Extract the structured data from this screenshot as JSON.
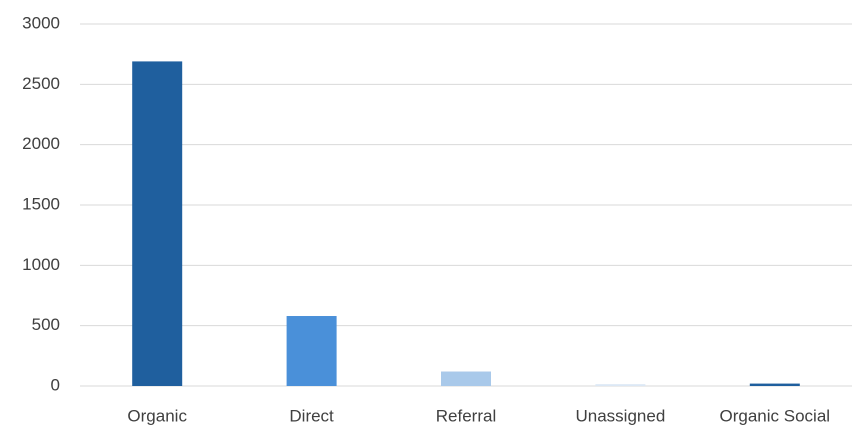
{
  "chart_data": {
    "type": "bar",
    "categories": [
      "Organic",
      "Direct",
      "Referral",
      "Unassigned",
      "Organic Social"
    ],
    "values": [
      2690,
      580,
      120,
      15,
      20
    ],
    "colors": [
      "#1f5f9e",
      "#4a90d9",
      "#a9c9ea",
      "#dce8f5",
      "#1f5f9e"
    ],
    "ylim": [
      0,
      3000
    ],
    "yticks": [
      0,
      500,
      1000,
      1500,
      2000,
      2500,
      3000
    ],
    "grid": true
  }
}
